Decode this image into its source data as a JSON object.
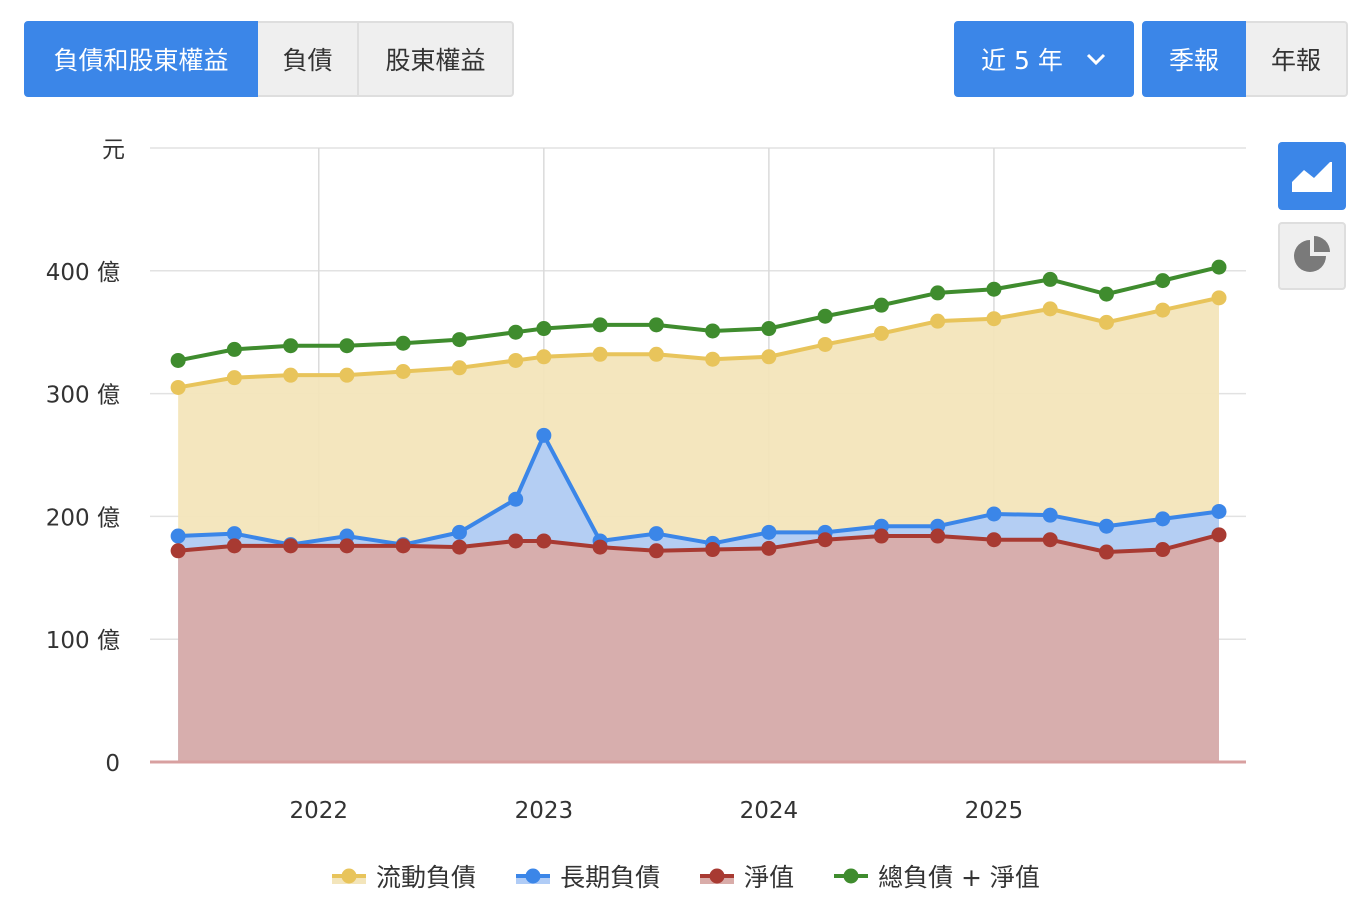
{
  "controls": {
    "segments": [
      {
        "label": "負債和股東權益",
        "active": true
      },
      {
        "label": "負債",
        "active": false
      },
      {
        "label": "股東權益",
        "active": false
      }
    ],
    "range_label": "近 5 年",
    "periods": [
      {
        "label": "季報",
        "active": true
      },
      {
        "label": "年報",
        "active": false
      }
    ],
    "chart_types": [
      "area-chart-icon",
      "pie-chart-icon"
    ]
  },
  "chart_data": {
    "type": "area",
    "yunit": "元",
    "ylim": [
      0,
      500
    ],
    "yticks": [
      {
        "value": 0,
        "label": "0"
      },
      {
        "value": 100,
        "label": "100 億"
      },
      {
        "value": 200,
        "label": "200 億"
      },
      {
        "value": 300,
        "label": "300 億"
      },
      {
        "value": 400,
        "label": "400 億"
      }
    ],
    "xticks": [
      {
        "value": 2022,
        "label": "2022"
      },
      {
        "value": 2023,
        "label": "2023"
      },
      {
        "value": 2024,
        "label": "2024"
      },
      {
        "value": 2025,
        "label": "2025"
      }
    ],
    "x": [
      2021.375,
      2021.625,
      2021.875,
      2022.125,
      2022.375,
      2022.625,
      2022.875,
      2023.0,
      2023.25,
      2023.5,
      2023.75,
      2024.0,
      2024.25,
      2024.5,
      2024.75,
      2025.0,
      2025.25,
      2025.5,
      2025.75,
      2026.0
    ],
    "series": [
      {
        "name": "流動負債",
        "color": "#e8c45b",
        "fill": "#f3e5bb",
        "values": [
          305,
          313,
          315,
          315,
          318,
          321,
          327,
          330,
          332,
          332,
          328,
          330,
          340,
          349,
          359,
          361,
          369,
          358,
          368,
          378
        ]
      },
      {
        "name": "長期負債",
        "color": "#3b86e8",
        "fill": "#b0ccf6",
        "values": [
          184,
          186,
          177,
          184,
          177,
          187,
          214,
          266,
          180,
          186,
          178,
          187,
          187,
          192,
          192,
          202,
          201,
          192,
          198,
          204
        ]
      },
      {
        "name": "淨值",
        "color": "#a83a32",
        "fill": "#d9aca9",
        "values": [
          172,
          176,
          176,
          176,
          176,
          175,
          180,
          180,
          175,
          172,
          173,
          174,
          181,
          184,
          184,
          181,
          181,
          171,
          173,
          185
        ]
      },
      {
        "name": "總負債 + 淨值",
        "color": "#3f8c2e",
        "fill": null,
        "values": [
          327,
          336,
          339,
          339,
          341,
          344,
          350,
          353,
          356,
          356,
          351,
          353,
          363,
          372,
          382,
          385,
          393,
          381,
          392,
          403
        ]
      }
    ],
    "legend": "bottom",
    "grid": true
  }
}
